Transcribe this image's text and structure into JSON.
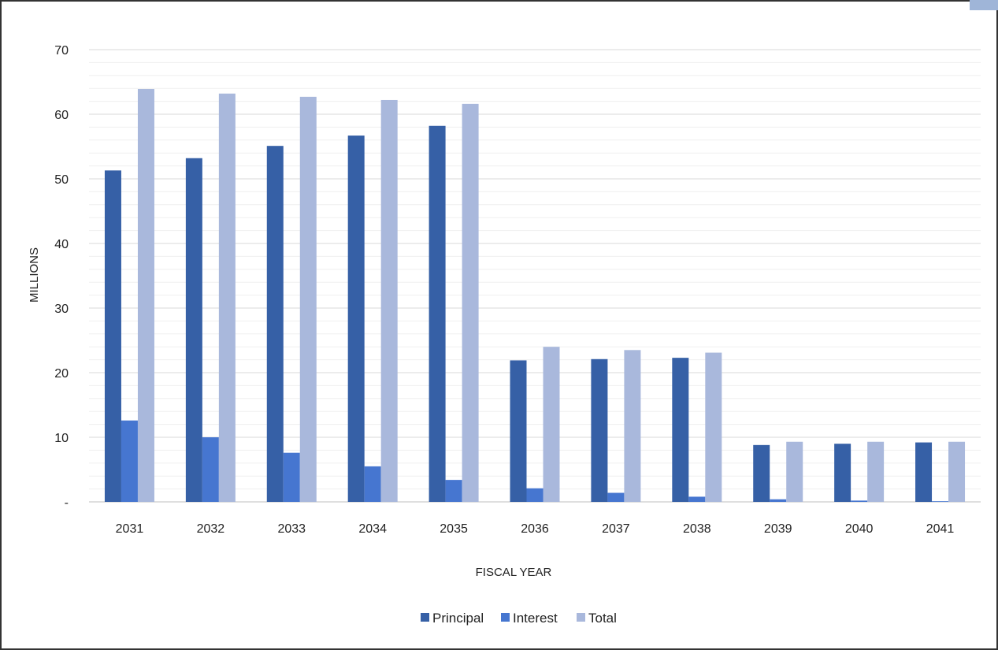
{
  "chart_data": {
    "type": "bar",
    "xlabel": "FISCAL YEAR",
    "ylabel": "MILLIONS",
    "ylim": [
      0,
      70
    ],
    "yticks": [
      0,
      10,
      20,
      30,
      40,
      50,
      60,
      70
    ],
    "ytick_labels": [
      "-",
      "10",
      "20",
      "30",
      "40",
      "50",
      "60",
      "70"
    ],
    "minor_gridlines": true,
    "legend_position": "bottom",
    "categories": [
      "2031",
      "2032",
      "2033",
      "2034",
      "2035",
      "2036",
      "2037",
      "2038",
      "2039",
      "2040",
      "2041"
    ],
    "series": [
      {
        "name": "Principal",
        "color": "#3660a6",
        "values": [
          51.3,
          53.2,
          55.1,
          56.7,
          58.2,
          21.9,
          22.1,
          22.3,
          8.8,
          9.0,
          9.2
        ]
      },
      {
        "name": "Interest",
        "color": "#4676d0",
        "values": [
          12.6,
          10.0,
          7.6,
          5.5,
          3.4,
          2.1,
          1.4,
          0.8,
          0.4,
          0.2,
          0.1
        ]
      },
      {
        "name": "Total",
        "color": "#a9b8dc",
        "values": [
          63.9,
          63.2,
          62.7,
          62.2,
          61.6,
          24.0,
          23.5,
          23.1,
          9.3,
          9.3,
          9.3
        ]
      }
    ]
  }
}
